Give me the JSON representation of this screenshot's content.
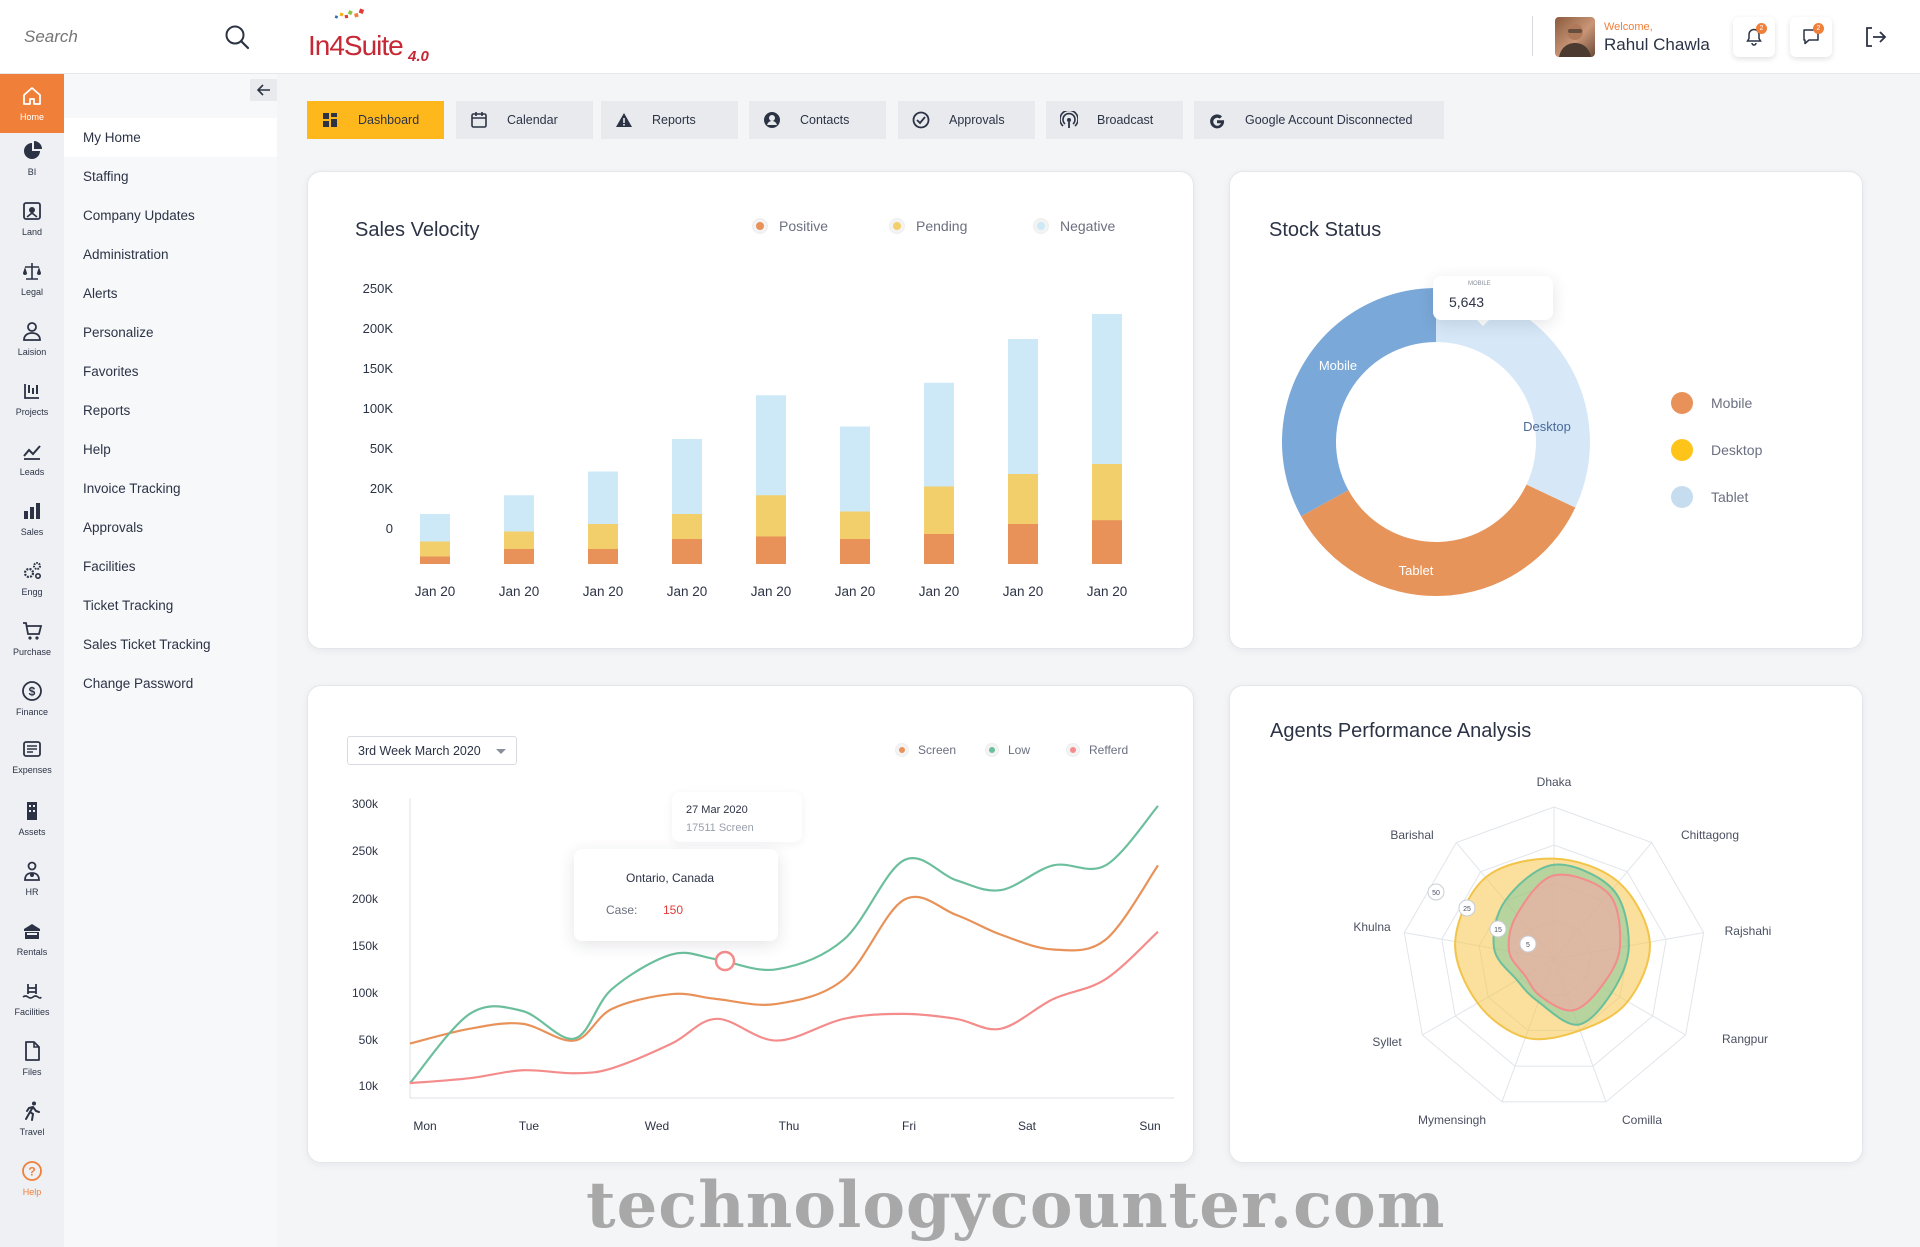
{
  "search": {
    "placeholder": "Search"
  },
  "brand": {
    "name": "In4Suite",
    "version": "4.0"
  },
  "user": {
    "welcome": "Welcome,",
    "name": "Rahul Chawla",
    "notification_count": "2",
    "message_count": "2"
  },
  "rail": {
    "items": [
      {
        "label": "Home",
        "icon": "home-icon"
      },
      {
        "label": "BI",
        "icon": "pie-icon"
      },
      {
        "label": "Land",
        "icon": "land-icon"
      },
      {
        "label": "Legal",
        "icon": "scale-icon"
      },
      {
        "label": "Laision",
        "icon": "person-icon"
      },
      {
        "label": "Projects",
        "icon": "projects-icon"
      },
      {
        "label": "Leads",
        "icon": "trend-icon"
      },
      {
        "label": "Sales",
        "icon": "bar-icon"
      },
      {
        "label": "Engg",
        "icon": "gears-icon"
      },
      {
        "label": "Purchase",
        "icon": "cart-icon"
      },
      {
        "label": "Finance",
        "icon": "dollar-icon"
      },
      {
        "label": "Expenses",
        "icon": "expenses-icon"
      },
      {
        "label": "Assets",
        "icon": "building-icon"
      },
      {
        "label": "HR",
        "icon": "hr-icon"
      },
      {
        "label": "Rentals",
        "icon": "rentals-icon"
      },
      {
        "label": "Facilities",
        "icon": "pool-icon"
      },
      {
        "label": "Files",
        "icon": "file-icon"
      },
      {
        "label": "Travel",
        "icon": "walk-icon"
      },
      {
        "label": "Help",
        "icon": "help-icon"
      }
    ]
  },
  "submenu": {
    "items": [
      "My Home",
      "Staffing",
      "Company Updates",
      "Administration",
      "Alerts",
      "Personalize",
      "Favorites",
      "Reports",
      "Help",
      "Invoice Tracking",
      "Approvals",
      "Facilities",
      "Ticket Tracking",
      "Sales Ticket Tracking",
      "Change Password"
    ]
  },
  "tabs": [
    {
      "label": "Dashboard",
      "icon": "dashboard-icon"
    },
    {
      "label": "Calendar",
      "icon": "calendar-icon"
    },
    {
      "label": "Reports",
      "icon": "warning-icon"
    },
    {
      "label": "Contacts",
      "icon": "contact-icon"
    },
    {
      "label": "Approvals",
      "icon": "check-icon"
    },
    {
      "label": "Broadcast",
      "icon": "broadcast-icon"
    },
    {
      "label": "Google Account Disconnected",
      "icon": "google-icon"
    }
  ],
  "colors": {
    "accent": "#f07f3a",
    "tab_active": "#ffb81c",
    "positive": "#e8925a",
    "pending": "#f2cf6b",
    "negative": "#cde9f7",
    "mobile": "#e8925a",
    "desktop": "#ffc41a",
    "tablet": "#c6dcef",
    "screen": "#e8925a",
    "low": "#6cbf9c",
    "refferd": "#f48c8c"
  },
  "sales_velocity": {
    "title": "Sales Velocity",
    "legend": [
      "Positive",
      "Pending",
      "Negative"
    ]
  },
  "stock_status": {
    "title": "Stock Status",
    "tooltip_label": "MOBILE",
    "tooltip_value": "5,643",
    "legend": [
      "Mobile",
      "Desktop",
      "Tablet"
    ]
  },
  "weekly": {
    "dropdown": "3rd Week March 2020",
    "legend": [
      "Screen",
      "Low",
      "Refferd"
    ],
    "tooltip1_date": "27 Mar 2020",
    "tooltip1_value": "17511 Screen",
    "tooltip2_location": "Ontario, Canada",
    "tooltip2_label": "Case:",
    "tooltip2_value": "150"
  },
  "agents": {
    "title": "Agents Performance Analysis"
  },
  "chart_data": [
    {
      "type": "bar",
      "stacked": true,
      "title": "Sales Velocity",
      "categories": [
        "Jan 20",
        "Jan 20",
        "Jan 20",
        "Jan 20",
        "Jan 20",
        "Jan 20",
        "Jan 20",
        "Jan 20",
        "Jan 20"
      ],
      "y_ticks": [
        "250K",
        "200K",
        "150K",
        "100K",
        "50K",
        "20K",
        "0"
      ],
      "series": [
        {
          "name": "Positive",
          "values": [
            6,
            12,
            12,
            20,
            22,
            20,
            24,
            32,
            35
          ]
        },
        {
          "name": "Pending",
          "values": [
            18,
            26,
            32,
            40,
            55,
            42,
            62,
            72,
            80
          ]
        },
        {
          "name": "Negative",
          "values": [
            40,
            55,
            74,
            100,
            135,
            110,
            145,
            180,
            200
          ]
        }
      ],
      "legend_position": "top-right"
    },
    {
      "type": "pie",
      "donut": true,
      "title": "Stock Status",
      "categories": [
        "Desktop",
        "Tablet",
        "Mobile"
      ],
      "values": [
        32,
        35,
        33
      ],
      "legend_position": "right"
    },
    {
      "type": "line",
      "smooth": true,
      "categories": [
        "Mon",
        "Tue",
        "Wed",
        "Thu",
        "Fri",
        "Sat",
        "Sun"
      ],
      "y_ticks": [
        "300k",
        "250k",
        "200k",
        "150k",
        "100k",
        "50k",
        "10k"
      ],
      "x": [
        0,
        0.08,
        0.15,
        0.22,
        0.27,
        0.35,
        0.41,
        0.49,
        0.58,
        0.66,
        0.73,
        0.79,
        0.86,
        0.93,
        1.0
      ],
      "series": [
        {
          "name": "Screen",
          "values": [
            55,
            70,
            75,
            58,
            90,
            105,
            100,
            95,
            120,
            200,
            185,
            165,
            150,
            160,
            235
          ]
        },
        {
          "name": "Low",
          "values": [
            15,
            85,
            88,
            60,
            110,
            145,
            140,
            130,
            160,
            240,
            220,
            210,
            235,
            235,
            295
          ]
        },
        {
          "name": "Refferd",
          "values": [
            15,
            20,
            28,
            25,
            30,
            55,
            80,
            58,
            80,
            85,
            80,
            70,
            100,
            120,
            168
          ]
        }
      ],
      "legend_position": "top-right"
    },
    {
      "type": "radar",
      "title": "Agents Performance Analysis",
      "categories": [
        "Dhaka",
        "Chittagong",
        "Rajshahi",
        "Rangpur",
        "Comilla",
        "Mymensingh",
        "Syllet",
        "Khulna",
        "Barishal"
      ],
      "rings": [
        "50",
        "25",
        "15",
        "5"
      ],
      "series": [
        {
          "name": "Screen",
          "values": [
            0.66,
            0.66,
            0.64,
            0.56,
            0.5,
            0.55,
            0.58,
            0.66,
            0.7
          ]
        },
        {
          "name": "Low",
          "values": [
            0.62,
            0.6,
            0.5,
            0.44,
            0.46,
            0.3,
            0.28,
            0.4,
            0.5
          ]
        },
        {
          "name": "Refferd",
          "values": [
            0.55,
            0.56,
            0.44,
            0.36,
            0.36,
            0.26,
            0.22,
            0.3,
            0.38
          ]
        }
      ]
    }
  ],
  "watermark": "technologycounter.com"
}
